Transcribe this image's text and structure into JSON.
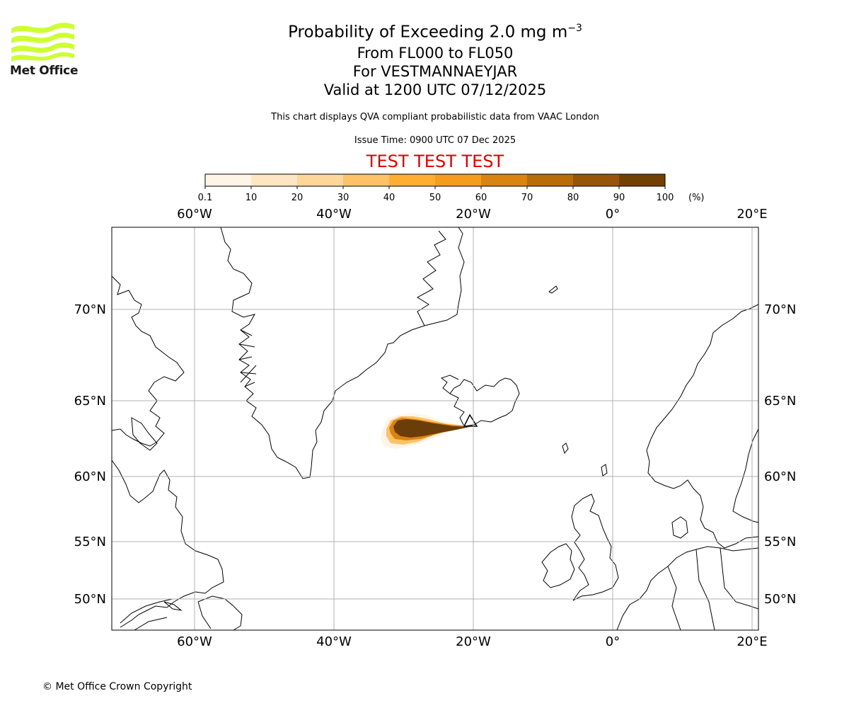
{
  "logo": {
    "text": "Met Office",
    "accent_color": "#ccff33"
  },
  "title": {
    "line1": "Probability of Exceeding 2.0 mg m",
    "line1_sup": "−3",
    "line2": "From FL000 to FL050",
    "line3": "For VESTMANNAEYJAR",
    "line4": "Valid at 1200 UTC 07/12/2025"
  },
  "description": "This chart displays QVA compliant probabilistic data from VAAC London",
  "issue_time": "Issue Time: 0900 UTC 07 Dec 2025",
  "test_banner": "TEST TEST TEST",
  "colorbar": {
    "ticks": [
      "0.1",
      "10",
      "20",
      "30",
      "40",
      "50",
      "60",
      "70",
      "80",
      "90",
      "100"
    ],
    "unit": "(%)",
    "colors": [
      "#fff5e6",
      "#ffe6c2",
      "#ffd699",
      "#ffc266",
      "#ffad33",
      "#f59b1e",
      "#d98310",
      "#b86d0a",
      "#965508",
      "#734004"
    ]
  },
  "map": {
    "lon_labels": [
      "60°W",
      "40°W",
      "20°W",
      "0°",
      "20°E"
    ],
    "lat_labels": [
      "70°N",
      "65°N",
      "60°N",
      "55°N",
      "50°N"
    ],
    "grid_color": "#b0b0b0",
    "plume_color": "#6b3d08",
    "volcano_marker": "triangle-icon"
  },
  "copyright": "© Met Office Crown Copyright"
}
